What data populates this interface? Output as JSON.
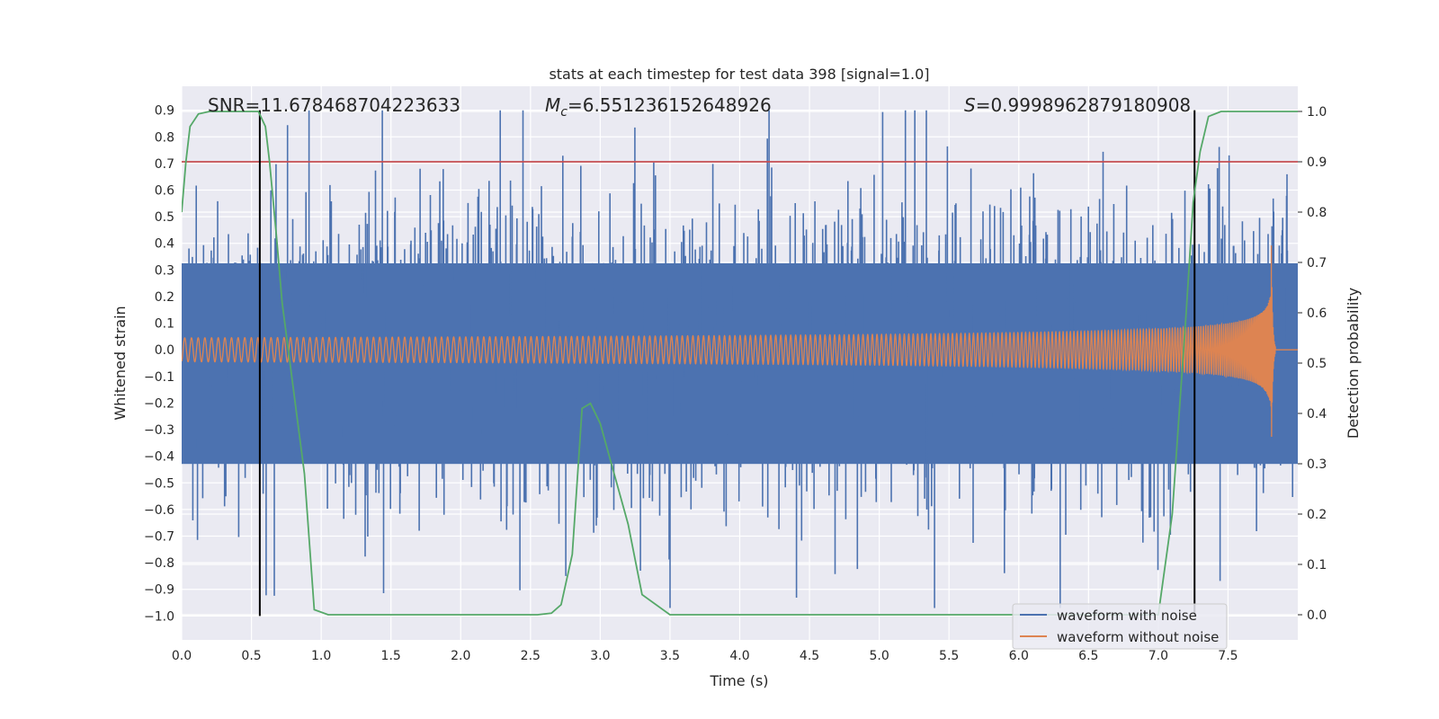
{
  "chart_data": {
    "type": "line",
    "title": "stats at each timestep for test data 398 [signal=1.0]",
    "xlabel": "Time (s)",
    "ylabel_left": "Whitened strain",
    "ylabel_right": "Detection probability",
    "xlim": [
      0.0,
      8.0
    ],
    "ylim_left": [
      -1.09,
      0.99
    ],
    "ylim_right": [
      -0.05,
      1.05
    ],
    "xticks": [
      "0.0",
      "0.5",
      "1.0",
      "1.5",
      "2.0",
      "2.5",
      "3.0",
      "3.5",
      "4.0",
      "4.5",
      "5.0",
      "5.5",
      "6.0",
      "6.5",
      "7.0",
      "7.5"
    ],
    "yticks_left": [
      "0.9",
      "0.8",
      "0.7",
      "0.6",
      "0.5",
      "0.4",
      "0.3",
      "0.2",
      "0.1",
      "0.0",
      "−0.1",
      "−0.2",
      "−0.3",
      "−0.4",
      "−0.5",
      "−0.6",
      "−0.7",
      "−0.8",
      "−0.9",
      "−1.0"
    ],
    "yticks_right": [
      "1.0",
      "0.9",
      "0.8",
      "0.7",
      "0.6",
      "0.5",
      "0.4",
      "0.3",
      "0.2",
      "0.1",
      "0.0"
    ],
    "annotations": {
      "snr": "SNR=11.678468704223633",
      "mc_symbol": "M",
      "mc_sub": "c",
      "mc_value": "=6.551236152648926",
      "s_symbol": "S",
      "s_value": "=0.9998962879180908"
    },
    "threshold_line": {
      "axis": "right",
      "value": 0.9,
      "color": "#c44e52"
    },
    "vertical_lines": [
      0.56,
      7.26
    ],
    "vertical_line_range": [
      -1.0,
      0.9
    ],
    "series": [
      {
        "name": "waveform with noise",
        "axis": "left",
        "color": "#4c72b0",
        "kind": "noise",
        "band_sigma": 0.13,
        "spike_range": [
          -0.97,
          0.9
        ]
      },
      {
        "name": "waveform without noise",
        "axis": "left",
        "color": "#dd8452",
        "kind": "chirp",
        "t_merger": 7.81,
        "peak_pos": 0.42,
        "peak_neg": -0.32
      },
      {
        "name": "detection probability",
        "axis": "right",
        "color": "#55a868",
        "x": [
          0.0,
          0.03,
          0.06,
          0.12,
          0.2,
          0.3,
          0.45,
          0.55,
          0.6,
          0.63,
          0.68,
          0.72,
          0.8,
          0.88,
          0.95,
          1.05,
          2.0,
          2.55,
          2.65,
          2.72,
          2.8,
          2.87,
          2.93,
          3.0,
          3.1,
          3.2,
          3.3,
          3.5,
          6.5,
          7.0,
          7.1,
          7.15,
          7.2,
          7.25,
          7.3,
          7.36,
          7.45,
          7.6,
          8.0
        ],
        "y": [
          0.8,
          0.9,
          0.97,
          0.995,
          1.0,
          1.0,
          1.0,
          1.0,
          0.97,
          0.9,
          0.75,
          0.62,
          0.45,
          0.28,
          0.01,
          0.0,
          0.0,
          0.0,
          0.003,
          0.02,
          0.12,
          0.41,
          0.42,
          0.38,
          0.28,
          0.18,
          0.04,
          0.0,
          0.0,
          0.0,
          0.2,
          0.4,
          0.6,
          0.82,
          0.92,
          0.99,
          1.0,
          1.0,
          1.0
        ]
      }
    ],
    "legend": {
      "position": "lower-right",
      "entries": [
        "waveform with noise",
        "waveform without noise"
      ]
    }
  }
}
